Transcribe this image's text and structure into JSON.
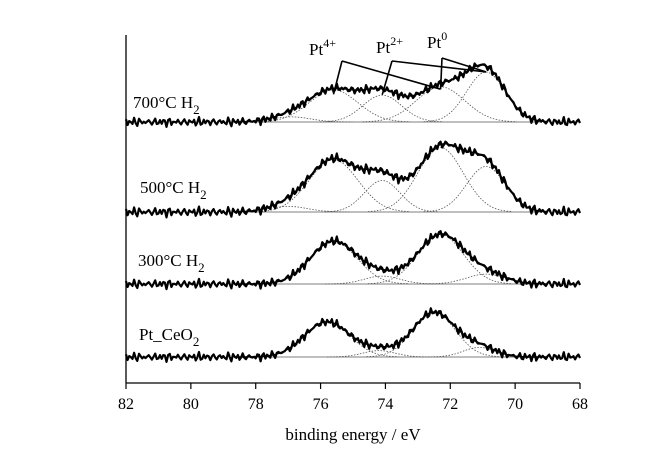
{
  "chart_data": {
    "type": "line",
    "xlabel": "binding energy / eV",
    "xlim": [
      82,
      68
    ],
    "x_reversed": true,
    "xticks": [
      "82",
      "80",
      "78",
      "76",
      "74",
      "72",
      "70",
      "68"
    ],
    "y_axis_shown": false,
    "annotations": [
      {
        "base": "Pt",
        "sup": "4+",
        "peaks_eV": [
          75.6,
          72.3
        ]
      },
      {
        "base": "Pt",
        "sup": "2+",
        "peaks_eV": [
          74.1,
          70.9
        ]
      },
      {
        "base": "Pt",
        "sup": "0",
        "peaks_eV": [
          72.3,
          70.9
        ]
      }
    ],
    "series": [
      {
        "name": "700°C H2",
        "label_main": "700°C H",
        "label_sub": "2",
        "baseline": 0,
        "components": [
          {
            "center": 75.6,
            "height": 0.5,
            "width": 0.75
          },
          {
            "center": 74.1,
            "height": 0.42,
            "width": 0.6
          },
          {
            "center": 72.3,
            "height": 0.55,
            "width": 0.75
          },
          {
            "center": 70.9,
            "height": 0.78,
            "width": 0.6
          },
          {
            "center": 76.9,
            "height": 0.08,
            "width": 0.6
          }
        ]
      },
      {
        "name": "500°C H2",
        "label_main": "500°C H",
        "label_sub": "2",
        "baseline": 0,
        "components": [
          {
            "center": 75.6,
            "height": 0.75,
            "width": 0.75
          },
          {
            "center": 74.1,
            "height": 0.45,
            "width": 0.55
          },
          {
            "center": 72.3,
            "height": 0.92,
            "width": 0.7
          },
          {
            "center": 70.9,
            "height": 0.65,
            "width": 0.6
          },
          {
            "center": 77.0,
            "height": 0.08,
            "width": 0.6
          }
        ]
      },
      {
        "name": "300°C H2",
        "label_main": "300°C H",
        "label_sub": "2",
        "baseline": 0,
        "components": [
          {
            "center": 75.6,
            "height": 0.65,
            "width": 0.72
          },
          {
            "center": 74.1,
            "height": 0.12,
            "width": 0.55
          },
          {
            "center": 72.3,
            "height": 0.75,
            "width": 0.7
          },
          {
            "center": 70.9,
            "height": 0.15,
            "width": 0.6
          }
        ]
      },
      {
        "name": "Pt_CeO2",
        "label_main": "Pt_CeO",
        "label_sub": "2",
        "baseline": 0,
        "components": [
          {
            "center": 75.8,
            "height": 0.55,
            "width": 0.7
          },
          {
            "center": 74.2,
            "height": 0.1,
            "width": 0.5
          },
          {
            "center": 72.5,
            "height": 0.7,
            "width": 0.65
          },
          {
            "center": 71.1,
            "height": 0.15,
            "width": 0.5
          }
        ]
      }
    ]
  }
}
